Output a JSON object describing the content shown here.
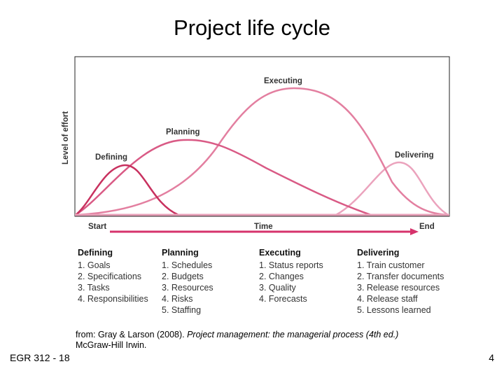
{
  "slide": {
    "title": "Project life cycle",
    "footer_left": "EGR 312 - 18",
    "page_number": "4"
  },
  "diagram": {
    "y_axis_label": "Level of effort",
    "curve_labels": {
      "defining": "Defining",
      "planning": "Planning",
      "executing": "Executing",
      "delivering": "Delivering"
    },
    "timeline": {
      "start": "Start",
      "middle": "Time",
      "end": "End"
    },
    "colors": {
      "curve": "#d94f7a",
      "curve_light": "#e68aa6",
      "arrow": "#d6336c"
    }
  },
  "phases": [
    {
      "name": "Defining",
      "items": [
        "1. Goals",
        "2. Specifications",
        "3. Tasks",
        "4. Responsibilities"
      ]
    },
    {
      "name": "Planning",
      "items": [
        "1. Schedules",
        "2. Budgets",
        "3. Resources",
        "4. Risks",
        "5. Staffing"
      ]
    },
    {
      "name": "Executing",
      "items": [
        "1. Status reports",
        "2. Changes",
        "3. Quality",
        "4. Forecasts"
      ]
    },
    {
      "name": "Delivering",
      "items": [
        "1. Train customer",
        "2. Transfer documents",
        "3. Release resources",
        "4. Release staff",
        "5. Lessons learned"
      ]
    }
  ],
  "source": {
    "prefix": "from: Gray & Larson (2008). ",
    "publication": "Project management: the managerial process (4th ed.)",
    "publisher": "McGraw-Hill Irwin."
  }
}
